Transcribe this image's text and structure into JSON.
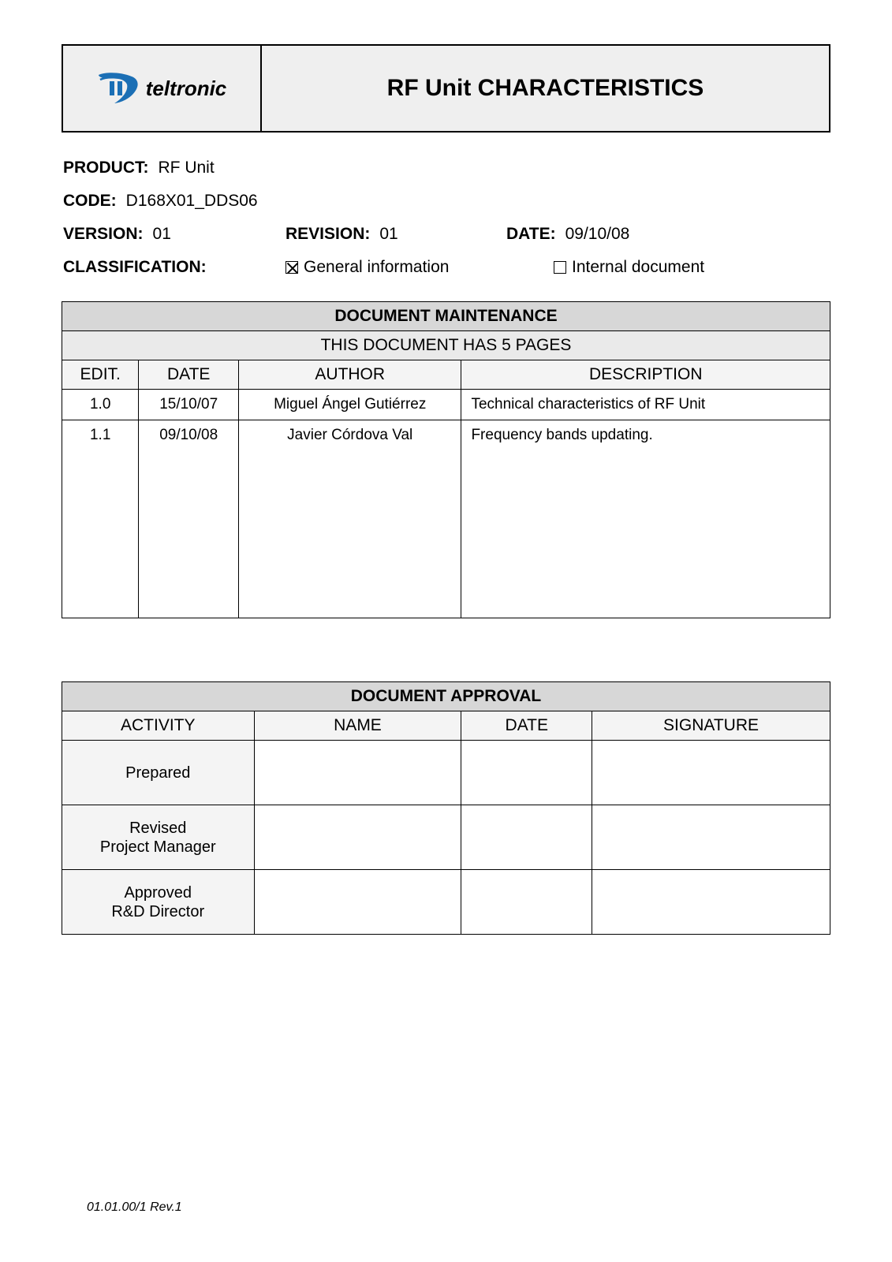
{
  "header": {
    "logo_text": "teltronic",
    "logo_color": "#1b6fb5",
    "title": "RF Unit CHARACTERISTICS"
  },
  "meta": {
    "product_label": "PRODUCT:",
    "product_value": "RF Unit",
    "code_label": "CODE:",
    "code_value": "D168X01_DDS06",
    "version_label": "VERSION:",
    "version_value": "01",
    "revision_label": "REVISION:",
    "revision_value": "01",
    "date_label": "DATE:",
    "date_value": "09/10/08",
    "classification_label": "CLASSIFICATION:",
    "class_general_checked": true,
    "class_general_text": "General information",
    "class_internal_checked": false,
    "class_internal_text": "Internal document"
  },
  "maintenance": {
    "title": "DOCUMENT MAINTENANCE",
    "subtitle": "THIS DOCUMENT HAS 5 PAGES",
    "columns": [
      "EDIT.",
      "DATE",
      "AUTHOR",
      "DESCRIPTION"
    ],
    "col_widths_pct": [
      10,
      13,
      29,
      48
    ],
    "rows": [
      {
        "edit": "1.0",
        "date": "15/10/07",
        "author": "Miguel Ángel Gutiérrez",
        "description": "Technical characteristics of RF Unit"
      },
      {
        "edit": "1.1",
        "date": "09/10/08",
        "author": "Javier Córdova Val",
        "description": "Frequency bands updating."
      }
    ]
  },
  "approval": {
    "title": "DOCUMENT APPROVAL",
    "columns": [
      "ACTIVITY",
      "NAME",
      "DATE",
      "SIGNATURE"
    ],
    "col_widths_pct": [
      25,
      27,
      17,
      31
    ],
    "rows": [
      {
        "activity": "Prepared",
        "name": "",
        "date": "",
        "signature": ""
      },
      {
        "activity": "Revised\nProject Manager",
        "name": "",
        "date": "",
        "signature": ""
      },
      {
        "activity": "Approved\nR&D Director",
        "name": "",
        "date": "",
        "signature": ""
      }
    ]
  },
  "footer": "01.01.00/1 Rev.1",
  "colors": {
    "page_bg": "#ffffff",
    "header_bg": "#efefef",
    "section_title_bg": "#d7d7d7",
    "section_sub_bg": "#eaeaea",
    "col_head_bg": "#f4f4f4",
    "border": "#000000",
    "text": "#000000"
  }
}
